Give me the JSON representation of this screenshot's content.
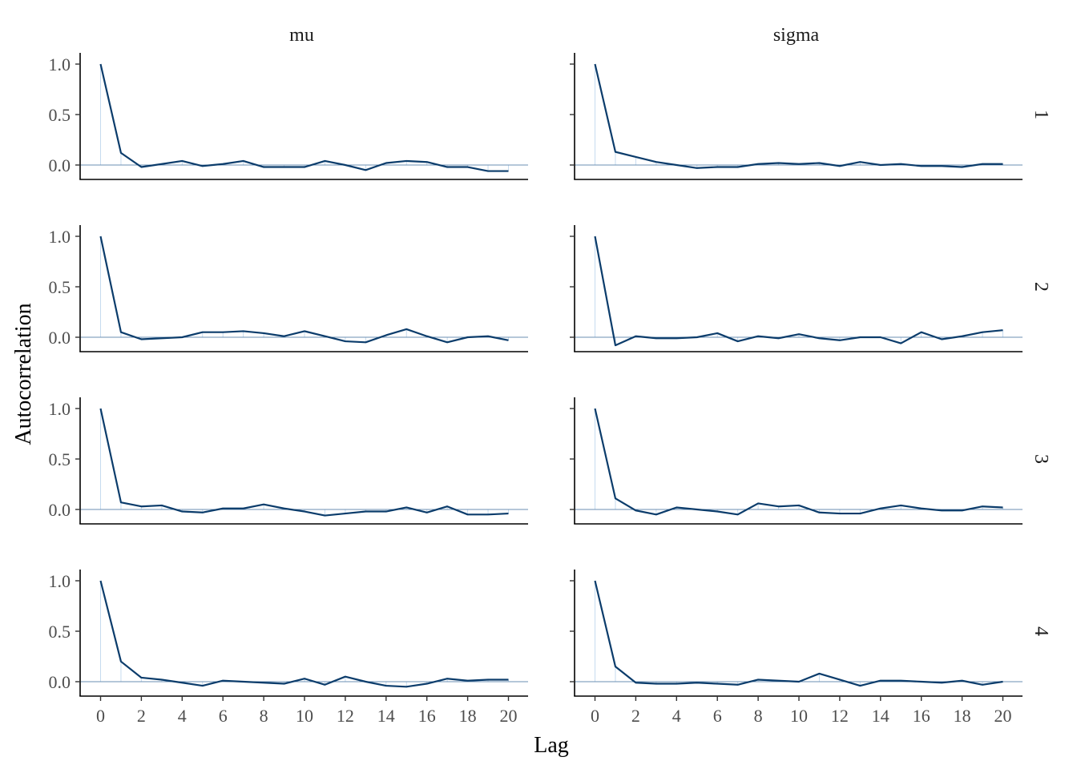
{
  "chart_data": {
    "type": "line",
    "xlabel": "Lag",
    "ylabel": "Autocorrelation",
    "xlim": [
      0,
      20
    ],
    "ylim": [
      -0.15,
      1.1
    ],
    "x_ticks": [
      0,
      2,
      4,
      6,
      8,
      10,
      12,
      14,
      16,
      18,
      20
    ],
    "x_tick_labels": [
      "0",
      "2",
      "4",
      "6",
      "8",
      "10",
      "12",
      "14",
      "16",
      "18",
      "20"
    ],
    "y_ticks": [
      0,
      0.5,
      1
    ],
    "y_tick_labels": [
      "0.0",
      "0.5",
      "1.0"
    ],
    "lags": [
      0,
      1,
      2,
      3,
      4,
      5,
      6,
      7,
      8,
      9,
      10,
      11,
      12,
      13,
      14,
      15,
      16,
      17,
      18,
      19,
      20
    ],
    "columns": [
      "mu",
      "sigma"
    ],
    "rows": [
      "1",
      "2",
      "3",
      "4"
    ],
    "line_color": "#0b3c6b",
    "bar_color": "#c6dbef",
    "zero_line_color": "#6b8fb3",
    "grid": false,
    "panels": [
      {
        "column": "mu",
        "row": "1",
        "values": [
          1.0,
          0.12,
          -0.02,
          0.01,
          0.04,
          -0.01,
          0.01,
          0.04,
          -0.02,
          -0.02,
          -0.02,
          0.04,
          0.0,
          -0.05,
          0.02,
          0.04,
          0.03,
          -0.02,
          -0.02,
          -0.06,
          -0.06
        ]
      },
      {
        "column": "sigma",
        "row": "1",
        "values": [
          1.0,
          0.13,
          0.08,
          0.03,
          0.0,
          -0.03,
          -0.02,
          -0.02,
          0.01,
          0.02,
          0.01,
          0.02,
          -0.01,
          0.03,
          0.0,
          0.01,
          -0.01,
          -0.01,
          -0.02,
          0.01,
          0.01
        ]
      },
      {
        "column": "mu",
        "row": "2",
        "values": [
          1.0,
          0.05,
          -0.02,
          -0.01,
          0.0,
          0.05,
          0.05,
          0.06,
          0.04,
          0.01,
          0.06,
          0.01,
          -0.04,
          -0.05,
          0.02,
          0.08,
          0.01,
          -0.05,
          0.0,
          0.01,
          -0.03
        ]
      },
      {
        "column": "sigma",
        "row": "2",
        "values": [
          1.0,
          -0.08,
          0.01,
          -0.01,
          -0.01,
          0.0,
          0.04,
          -0.04,
          0.01,
          -0.01,
          0.03,
          -0.01,
          -0.03,
          0.0,
          0.0,
          -0.06,
          0.05,
          -0.02,
          0.01,
          0.05,
          0.07
        ]
      },
      {
        "column": "mu",
        "row": "3",
        "values": [
          1.0,
          0.07,
          0.03,
          0.04,
          -0.02,
          -0.03,
          0.01,
          0.01,
          0.05,
          0.01,
          -0.02,
          -0.06,
          -0.04,
          -0.02,
          -0.02,
          0.02,
          -0.03,
          0.03,
          -0.05,
          -0.05,
          -0.04
        ]
      },
      {
        "column": "sigma",
        "row": "3",
        "values": [
          1.0,
          0.11,
          -0.01,
          -0.05,
          0.02,
          0.0,
          -0.02,
          -0.05,
          0.06,
          0.03,
          0.04,
          -0.03,
          -0.04,
          -0.04,
          0.01,
          0.04,
          0.01,
          -0.01,
          -0.01,
          0.03,
          0.02
        ]
      },
      {
        "column": "mu",
        "row": "4",
        "values": [
          1.0,
          0.2,
          0.04,
          0.02,
          -0.01,
          -0.04,
          0.01,
          0.0,
          -0.01,
          -0.02,
          0.03,
          -0.03,
          0.05,
          0.0,
          -0.04,
          -0.05,
          -0.02,
          0.03,
          0.01,
          0.02,
          0.02
        ]
      },
      {
        "column": "sigma",
        "row": "4",
        "values": [
          1.0,
          0.15,
          -0.01,
          -0.02,
          -0.02,
          -0.01,
          -0.02,
          -0.03,
          0.02,
          0.01,
          0.0,
          0.08,
          0.02,
          -0.04,
          0.01,
          0.01,
          0.0,
          -0.01,
          0.01,
          -0.03,
          0.0
        ]
      }
    ]
  }
}
